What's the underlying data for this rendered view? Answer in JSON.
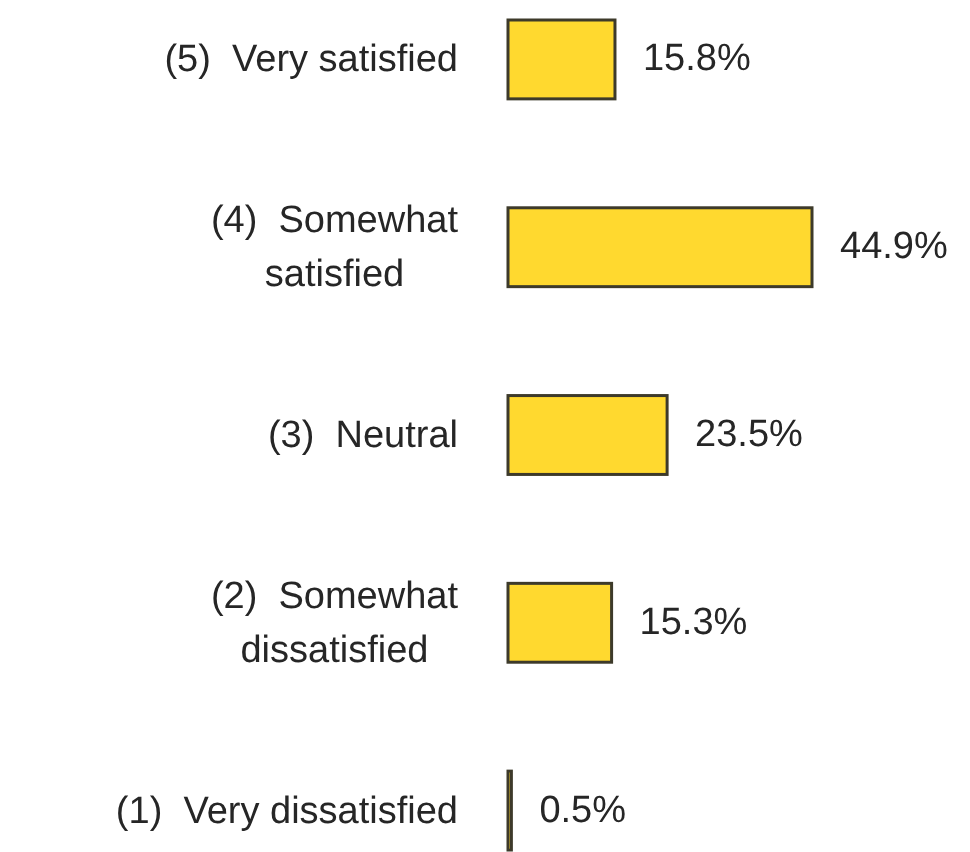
{
  "chart_data": {
    "type": "bar",
    "orientation": "horizontal",
    "categories": [
      "(5)  Very satisfied",
      "(4)  Somewhat satisfied",
      "(3)  Neutral",
      "(2)  Somewhat dissatisfied",
      "(1)  Very dissatisfied"
    ],
    "values": [
      15.8,
      44.9,
      23.5,
      15.3,
      0.5
    ],
    "color": "#ffd92f",
    "value_labels": [
      "15.8%",
      "44.9%",
      "23.5%",
      "15.3%",
      "0.5%"
    ]
  }
}
